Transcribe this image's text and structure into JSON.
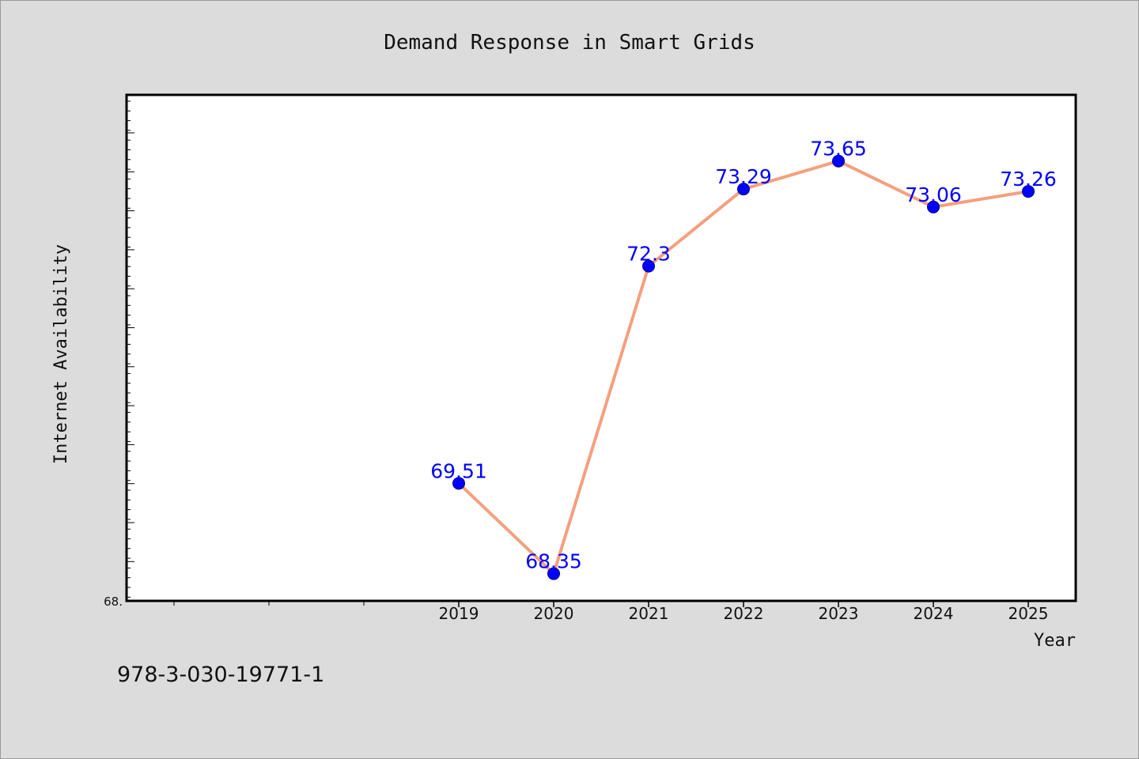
{
  "chart_data": {
    "type": "line",
    "title": "Demand Response in Smart Grids",
    "xlabel": "Year",
    "ylabel": "Internet Availability",
    "categories": [
      "2019",
      "2020",
      "2021",
      "2022",
      "2023",
      "2024",
      "2025"
    ],
    "values": [
      69.51,
      68.35,
      72.3,
      73.29,
      73.65,
      73.06,
      73.26
    ],
    "data_labels": [
      "69.51",
      "68.35",
      "72.3",
      "73.29",
      "73.65",
      "73.06",
      "73.26"
    ],
    "ylim": [
      68,
      74.5
    ],
    "y_min_label": "68.",
    "grid": false,
    "legend": "none",
    "line_color": "#f4a07e",
    "marker_color": "#0000ff",
    "label_color": "#0000ff"
  },
  "footnote": "978-3-030-19771-1"
}
